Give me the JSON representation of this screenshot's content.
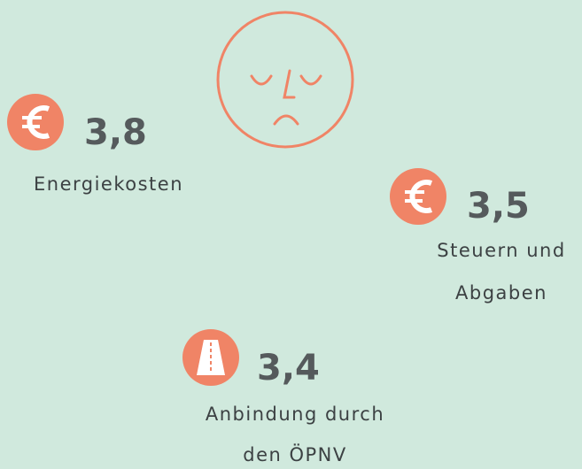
{
  "items": [
    {
      "value": "3,8",
      "label_lines": [
        "Energiekosten"
      ]
    },
    {
      "value": "3,5",
      "label_lines": [
        "Steuern und",
        "Abgaben"
      ]
    },
    {
      "value": "3,4",
      "label_lines": [
        "Anbindung durch",
        "den ÖPNV"
      ]
    }
  ]
}
